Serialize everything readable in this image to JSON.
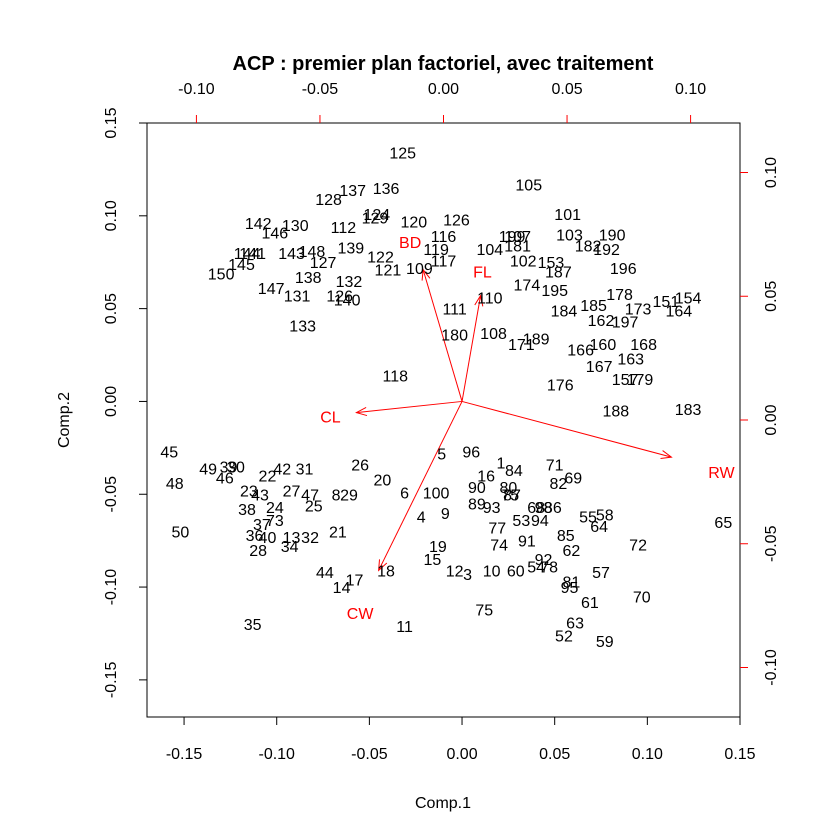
{
  "chart_data": {
    "type": "biplot",
    "title": "ACP : premier plan factoriel, avec traitement",
    "xlabel": "Comp.1",
    "ylabel": "Comp.2",
    "xlim": [
      -0.17,
      0.15
    ],
    "ylim": [
      -0.17,
      0.15
    ],
    "x_ticks": [
      "-0.15",
      "-0.10",
      "-0.05",
      "0.00",
      "0.05",
      "0.10",
      "0.15"
    ],
    "y_ticks": [
      "-0.15",
      "-0.10",
      "-0.05",
      "0.00",
      "0.05",
      "0.10",
      "0.15"
    ],
    "top_ticks": [
      "-0.10",
      "-0.05",
      "0.00",
      "0.05",
      "0.10"
    ],
    "right_ticks": [
      "-0.10",
      "-0.05",
      "0.00",
      "0.05",
      "0.10"
    ],
    "secondary_lim": [
      -0.12,
      0.12
    ],
    "colors": {
      "points": "#000000",
      "variables": "#ff0000",
      "axes": "#000000"
    },
    "points": [
      {
        "label": "125",
        "x": -0.032,
        "y": 0.134
      },
      {
        "label": "105",
        "x": 0.036,
        "y": 0.117
      },
      {
        "label": "137",
        "x": -0.059,
        "y": 0.114
      },
      {
        "label": "136",
        "x": -0.041,
        "y": 0.115
      },
      {
        "label": "128",
        "x": -0.072,
        "y": 0.109
      },
      {
        "label": "124",
        "x": -0.046,
        "y": 0.101
      },
      {
        "label": "129",
        "x": -0.047,
        "y": 0.099
      },
      {
        "label": "101",
        "x": 0.057,
        "y": 0.101
      },
      {
        "label": "142",
        "x": -0.11,
        "y": 0.096
      },
      {
        "label": "130",
        "x": -0.09,
        "y": 0.095
      },
      {
        "label": "112",
        "x": -0.064,
        "y": 0.094
      },
      {
        "label": "120",
        "x": -0.026,
        "y": 0.097
      },
      {
        "label": "126",
        "x": -0.003,
        "y": 0.098
      },
      {
        "label": "146",
        "x": -0.101,
        "y": 0.091
      },
      {
        "label": "116",
        "x": -0.01,
        "y": 0.089
      },
      {
        "label": "103",
        "x": 0.058,
        "y": 0.09
      },
      {
        "label": "190",
        "x": 0.081,
        "y": 0.09
      },
      {
        "label": "199",
        "x": 0.027,
        "y": 0.089
      },
      {
        "label": "107",
        "x": 0.03,
        "y": 0.089
      },
      {
        "label": "181",
        "x": 0.03,
        "y": 0.084
      },
      {
        "label": "182",
        "x": 0.068,
        "y": 0.084
      },
      {
        "label": "192",
        "x": 0.078,
        "y": 0.082
      },
      {
        "label": "143",
        "x": -0.092,
        "y": 0.08
      },
      {
        "label": "148",
        "x": -0.081,
        "y": 0.081
      },
      {
        "label": "139",
        "x": -0.06,
        "y": 0.083
      },
      {
        "label": "119",
        "x": -0.014,
        "y": 0.082
      },
      {
        "label": "104",
        "x": 0.015,
        "y": 0.082
      },
      {
        "label": "141",
        "x": -0.113,
        "y": 0.08
      },
      {
        "label": "144",
        "x": -0.116,
        "y": 0.08
      },
      {
        "label": "122",
        "x": -0.044,
        "y": 0.078
      },
      {
        "label": "109",
        "x": -0.023,
        "y": 0.072
      },
      {
        "label": "117",
        "x": -0.01,
        "y": 0.076
      },
      {
        "label": "102",
        "x": 0.033,
        "y": 0.076
      },
      {
        "label": "153",
        "x": 0.048,
        "y": 0.075
      },
      {
        "label": "145",
        "x": -0.119,
        "y": 0.074
      },
      {
        "label": "127",
        "x": -0.075,
        "y": 0.075
      },
      {
        "label": "121",
        "x": -0.04,
        "y": 0.071
      },
      {
        "label": "196",
        "x": 0.087,
        "y": 0.072
      },
      {
        "label": "150",
        "x": -0.13,
        "y": 0.069
      },
      {
        "label": "187",
        "x": 0.052,
        "y": 0.07
      },
      {
        "label": "138",
        "x": -0.083,
        "y": 0.067
      },
      {
        "label": "132",
        "x": -0.061,
        "y": 0.065
      },
      {
        "label": "174",
        "x": 0.035,
        "y": 0.063
      },
      {
        "label": "195",
        "x": 0.05,
        "y": 0.06
      },
      {
        "label": "147",
        "x": -0.103,
        "y": 0.061
      },
      {
        "label": "178",
        "x": 0.085,
        "y": 0.058
      },
      {
        "label": "131",
        "x": -0.089,
        "y": 0.057
      },
      {
        "label": "126",
        "x": -0.066,
        "y": 0.057
      },
      {
        "label": "140",
        "x": -0.062,
        "y": 0.055
      },
      {
        "label": "110",
        "x": 0.015,
        "y": 0.056
      },
      {
        "label": "151",
        "x": 0.11,
        "y": 0.054
      },
      {
        "label": "154",
        "x": 0.122,
        "y": 0.056
      },
      {
        "label": "111",
        "x": -0.004,
        "y": 0.05
      },
      {
        "label": "185",
        "x": 0.071,
        "y": 0.052
      },
      {
        "label": "164",
        "x": 0.117,
        "y": 0.049
      },
      {
        "label": "173",
        "x": 0.095,
        "y": 0.05
      },
      {
        "label": "184",
        "x": 0.055,
        "y": 0.049
      },
      {
        "label": "162",
        "x": 0.075,
        "y": 0.044
      },
      {
        "label": "197",
        "x": 0.088,
        "y": 0.043
      },
      {
        "label": "133",
        "x": -0.086,
        "y": 0.041
      },
      {
        "label": "180",
        "x": -0.004,
        "y": 0.036
      },
      {
        "label": "108",
        "x": 0.017,
        "y": 0.037
      },
      {
        "label": "189",
        "x": 0.04,
        "y": 0.034
      },
      {
        "label": "171",
        "x": 0.032,
        "y": 0.031
      },
      {
        "label": "160",
        "x": 0.076,
        "y": 0.031
      },
      {
        "label": "168",
        "x": 0.098,
        "y": 0.031
      },
      {
        "label": "166",
        "x": 0.064,
        "y": 0.028
      },
      {
        "label": "163",
        "x": 0.091,
        "y": 0.023
      },
      {
        "label": "167",
        "x": 0.074,
        "y": 0.019
      },
      {
        "label": "118",
        "x": -0.036,
        "y": 0.014
      },
      {
        "label": "157",
        "x": 0.088,
        "y": 0.012
      },
      {
        "label": "179",
        "x": 0.096,
        "y": 0.012
      },
      {
        "label": "176",
        "x": 0.053,
        "y": 0.009
      },
      {
        "label": "188",
        "x": 0.083,
        "y": -0.005
      },
      {
        "label": "183",
        "x": 0.122,
        "y": -0.004
      },
      {
        "label": "96",
        "x": 0.005,
        "y": -0.027
      },
      {
        "label": "45",
        "x": -0.158,
        "y": -0.027
      },
      {
        "label": "71",
        "x": 0.05,
        "y": -0.034
      },
      {
        "label": "1",
        "x": 0.021,
        "y": -0.033
      },
      {
        "label": "84",
        "x": 0.028,
        "y": -0.037
      },
      {
        "label": "16",
        "x": 0.013,
        "y": -0.04
      },
      {
        "label": "69",
        "x": 0.06,
        "y": -0.041
      },
      {
        "label": "5",
        "x": -0.011,
        "y": -0.028
      },
      {
        "label": "26",
        "x": -0.055,
        "y": -0.034
      },
      {
        "label": "49",
        "x": -0.137,
        "y": -0.036
      },
      {
        "label": "39",
        "x": -0.126,
        "y": -0.035
      },
      {
        "label": "30",
        "x": -0.122,
        "y": -0.035
      },
      {
        "label": "42",
        "x": -0.097,
        "y": -0.036
      },
      {
        "label": "31",
        "x": -0.085,
        "y": -0.036
      },
      {
        "label": "46",
        "x": -0.128,
        "y": -0.041
      },
      {
        "label": "22",
        "x": -0.105,
        "y": -0.04
      },
      {
        "label": "20",
        "x": -0.043,
        "y": -0.042
      },
      {
        "label": "82",
        "x": 0.052,
        "y": -0.044
      },
      {
        "label": "48",
        "x": -0.155,
        "y": -0.044
      },
      {
        "label": "90",
        "x": 0.008,
        "y": -0.046
      },
      {
        "label": "80",
        "x": 0.025,
        "y": -0.046
      },
      {
        "label": "23",
        "x": -0.115,
        "y": -0.048
      },
      {
        "label": "27",
        "x": -0.092,
        "y": -0.048
      },
      {
        "label": "6",
        "x": -0.031,
        "y": -0.049
      },
      {
        "label": "100",
        "x": -0.014,
        "y": -0.049
      },
      {
        "label": "75b",
        "x": 0.026,
        "y": -0.05
      },
      {
        "label": "87",
        "x": 0.027,
        "y": -0.05
      },
      {
        "label": "43",
        "x": -0.109,
        "y": -0.05
      },
      {
        "label": "47",
        "x": -0.082,
        "y": -0.05
      },
      {
        "label": "8",
        "x": -0.068,
        "y": -0.05
      },
      {
        "label": "29",
        "x": -0.061,
        "y": -0.05
      },
      {
        "label": "89",
        "x": 0.008,
        "y": -0.055
      },
      {
        "label": "93",
        "x": 0.016,
        "y": -0.057
      },
      {
        "label": "68",
        "x": 0.04,
        "y": -0.057
      },
      {
        "label": "98",
        "x": 0.044,
        "y": -0.057
      },
      {
        "label": "86",
        "x": 0.049,
        "y": -0.057
      },
      {
        "label": "24",
        "x": -0.101,
        "y": -0.057
      },
      {
        "label": "25",
        "x": -0.08,
        "y": -0.056
      },
      {
        "label": "38",
        "x": -0.116,
        "y": -0.058
      },
      {
        "label": "9",
        "x": -0.009,
        "y": -0.06
      },
      {
        "label": "4",
        "x": -0.022,
        "y": -0.062
      },
      {
        "label": "55",
        "x": 0.068,
        "y": -0.062
      },
      {
        "label": "58",
        "x": 0.077,
        "y": -0.061
      },
      {
        "label": "94",
        "x": 0.042,
        "y": -0.064
      },
      {
        "label": "53",
        "x": 0.032,
        "y": -0.064
      },
      {
        "label": "73",
        "x": -0.101,
        "y": -0.064
      },
      {
        "label": "37",
        "x": -0.108,
        "y": -0.066
      },
      {
        "label": "64",
        "x": 0.074,
        "y": -0.067
      },
      {
        "label": "77",
        "x": 0.019,
        "y": -0.068
      },
      {
        "label": "21",
        "x": -0.067,
        "y": -0.07
      },
      {
        "label": "50",
        "x": -0.152,
        "y": -0.07
      },
      {
        "label": "85",
        "x": 0.056,
        "y": -0.072
      },
      {
        "label": "36",
        "x": -0.112,
        "y": -0.072
      },
      {
        "label": "40",
        "x": -0.105,
        "y": -0.073
      },
      {
        "label": "13",
        "x": -0.092,
        "y": -0.073
      },
      {
        "label": "32",
        "x": -0.082,
        "y": -0.073
      },
      {
        "label": "91",
        "x": 0.035,
        "y": -0.075
      },
      {
        "label": "74",
        "x": 0.02,
        "y": -0.077
      },
      {
        "label": "72",
        "x": 0.095,
        "y": -0.077
      },
      {
        "label": "34",
        "x": -0.093,
        "y": -0.078
      },
      {
        "label": "28",
        "x": -0.11,
        "y": -0.08
      },
      {
        "label": "19",
        "x": -0.013,
        "y": -0.078
      },
      {
        "label": "62",
        "x": 0.059,
        "y": -0.08
      },
      {
        "label": "15",
        "x": -0.016,
        "y": -0.085
      },
      {
        "label": "92",
        "x": 0.044,
        "y": -0.085
      },
      {
        "label": "12",
        "x": -0.004,
        "y": -0.091
      },
      {
        "label": "10",
        "x": 0.016,
        "y": -0.091
      },
      {
        "label": "60",
        "x": 0.029,
        "y": -0.091
      },
      {
        "label": "54",
        "x": 0.04,
        "y": -0.089
      },
      {
        "label": "78",
        "x": 0.047,
        "y": -0.089
      },
      {
        "label": "3",
        "x": 0.003,
        "y": -0.093
      },
      {
        "label": "44",
        "x": -0.074,
        "y": -0.092
      },
      {
        "label": "18",
        "x": -0.041,
        "y": -0.091
      },
      {
        "label": "57",
        "x": 0.075,
        "y": -0.092
      },
      {
        "label": "17",
        "x": -0.058,
        "y": -0.096
      },
      {
        "label": "14",
        "x": -0.065,
        "y": -0.1
      },
      {
        "label": "81",
        "x": 0.059,
        "y": -0.097
      },
      {
        "label": "95",
        "x": 0.058,
        "y": -0.1
      },
      {
        "label": "70",
        "x": 0.097,
        "y": -0.105
      },
      {
        "label": "61",
        "x": 0.069,
        "y": -0.108
      },
      {
        "label": "75",
        "x": 0.012,
        "y": -0.112
      },
      {
        "label": "35",
        "x": -0.113,
        "y": -0.12
      },
      {
        "label": "11",
        "x": -0.031,
        "y": -0.121
      },
      {
        "label": "63",
        "x": 0.061,
        "y": -0.119
      },
      {
        "label": "52",
        "x": 0.055,
        "y": -0.126
      },
      {
        "label": "59",
        "x": 0.077,
        "y": -0.129
      },
      {
        "label": "65",
        "x": 0.141,
        "y": -0.065
      }
    ],
    "variables": [
      {
        "name": "BD",
        "x": -0.021,
        "y": 0.071,
        "lx": -0.028,
        "ly": 0.086
      },
      {
        "name": "FL",
        "x": 0.01,
        "y": 0.057,
        "lx": 0.011,
        "ly": 0.07
      },
      {
        "name": "CL",
        "x": -0.057,
        "y": -0.006,
        "lx": -0.071,
        "ly": -0.008
      },
      {
        "name": "RW",
        "x": 0.113,
        "y": -0.03,
        "lx": 0.14,
        "ly": -0.038
      },
      {
        "name": "CW",
        "x": -0.045,
        "y": -0.091,
        "lx": -0.055,
        "ly": -0.114
      }
    ]
  }
}
